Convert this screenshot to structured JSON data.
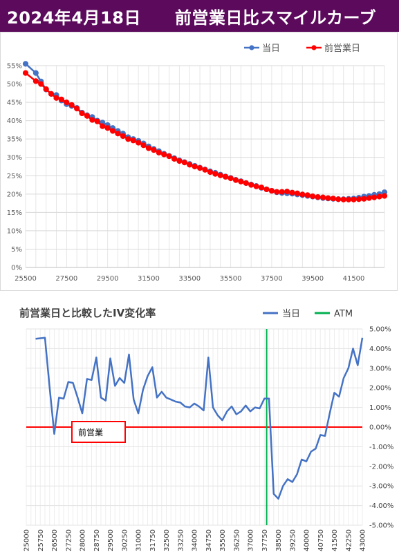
{
  "header": {
    "title": "2024年4月18日　　前営業日比スマイルカーブ"
  },
  "colors": {
    "header_bg": "#5c0a5c",
    "today": "#4472c4",
    "prev": "#ff0000",
    "atm": "#00b050",
    "iv_line": "#4472c4",
    "zero_line": "#ff0000"
  },
  "chart_data": [
    {
      "type": "line",
      "legend_position": "top-right",
      "grid": true,
      "xlim": [
        25500,
        43000
      ],
      "ylim": [
        0,
        55
      ],
      "x_ticks": [
        "25500",
        "27500",
        "29500",
        "31500",
        "33500",
        "35500",
        "37500",
        "39500",
        "41500"
      ],
      "y_ticks": [
        "0%",
        "5%",
        "10%",
        "15%",
        "20%",
        "25%",
        "30%",
        "35%",
        "40%",
        "45%",
        "50%",
        "55%"
      ],
      "series": [
        {
          "name": "当日",
          "x": [
            25500,
            26000,
            26250,
            26500,
            26750,
            27000,
            27250,
            27500,
            27750,
            28000,
            28250,
            28500,
            28750,
            29000,
            29250,
            29500,
            29750,
            30000,
            30250,
            30500,
            30750,
            31000,
            31250,
            31500,
            31750,
            32000,
            32250,
            32500,
            32750,
            33000,
            33250,
            33500,
            33750,
            34000,
            34250,
            34500,
            34750,
            35000,
            35250,
            35500,
            35750,
            36000,
            36250,
            36500,
            36750,
            37000,
            37250,
            37500,
            37750,
            38000,
            38250,
            38500,
            38750,
            39000,
            39250,
            39500,
            39750,
            40000,
            40250,
            40500,
            40750,
            41000,
            41250,
            41500,
            41750,
            42000,
            42250,
            42500,
            42750,
            43000
          ],
          "values": [
            55.5,
            53.0,
            50.7,
            48.5,
            47.3,
            47.0,
            45.5,
            44.5,
            44.0,
            43.5,
            42.2,
            41.5,
            41.0,
            40.0,
            39.5,
            38.8,
            38.0,
            37.2,
            36.5,
            35.5,
            35.0,
            34.5,
            33.8,
            33.0,
            32.3,
            31.7,
            31.0,
            30.4,
            29.8,
            29.2,
            28.7,
            28.2,
            27.7,
            27.2,
            26.7,
            26.2,
            25.8,
            25.3,
            24.8,
            24.4,
            23.9,
            23.5,
            23.0,
            22.6,
            22.2,
            21.7,
            21.3,
            20.9,
            20.5,
            20.3,
            20.2,
            20.1,
            19.9,
            19.7,
            19.5,
            19.3,
            19.1,
            18.9,
            18.8,
            18.7,
            18.6,
            18.6,
            18.7,
            18.8,
            19.0,
            19.3,
            19.5,
            19.8,
            20.0,
            20.5
          ]
        },
        {
          "name": "前営業日",
          "x": [
            25500,
            26000,
            26250,
            26500,
            26750,
            27000,
            27250,
            27500,
            27750,
            28000,
            28250,
            28500,
            28750,
            29000,
            29250,
            29500,
            29750,
            30000,
            30250,
            30500,
            30750,
            31000,
            31250,
            31500,
            31750,
            32000,
            32250,
            32500,
            32750,
            33000,
            33250,
            33500,
            33750,
            34000,
            34250,
            34500,
            34750,
            35000,
            35250,
            35500,
            35750,
            36000,
            36250,
            36500,
            36750,
            37000,
            37250,
            37500,
            37750,
            38000,
            38250,
            38500,
            38750,
            39000,
            39250,
            39500,
            39750,
            40000,
            40250,
            40500,
            40750,
            41000,
            41250,
            41500,
            41750,
            42000,
            42250,
            42500,
            42750,
            43000
          ],
          "values": [
            53.0,
            50.8,
            50.0,
            48.6,
            47.3,
            46.2,
            45.8,
            45.0,
            44.3,
            43.3,
            42.0,
            41.3,
            40.2,
            39.8,
            38.5,
            38.0,
            37.2,
            36.5,
            35.8,
            35.0,
            34.6,
            34.0,
            33.3,
            32.5,
            32.0,
            31.3,
            30.8,
            30.3,
            29.6,
            29.0,
            28.6,
            28.0,
            27.5,
            27.1,
            26.6,
            26.0,
            25.5,
            25.1,
            24.7,
            24.3,
            23.8,
            23.4,
            23.0,
            22.5,
            22.1,
            21.8,
            21.3,
            20.9,
            20.6,
            20.6,
            20.7,
            20.4,
            20.2,
            19.9,
            19.7,
            19.4,
            19.2,
            19.1,
            18.9,
            18.8,
            18.6,
            18.5,
            18.5,
            18.5,
            18.6,
            18.7,
            18.9,
            19.1,
            19.3,
            19.5
          ]
        }
      ]
    },
    {
      "type": "line",
      "title": "前営業日と比較したIV変化率",
      "legend_position": "top-right",
      "grid": true,
      "xlim": [
        25000,
        43000
      ],
      "ylim": [
        -5,
        5
      ],
      "x_ticks": [
        "25000",
        "25750",
        "26500",
        "27250",
        "28000",
        "28750",
        "29500",
        "30250",
        "31000",
        "31750",
        "32500",
        "33250",
        "34000",
        "34750",
        "35500",
        "36250",
        "37000",
        "37750",
        "38500",
        "39250",
        "40000",
        "40750",
        "41500",
        "42250",
        "43000"
      ],
      "y_ticks": [
        "5.00%",
        "4.00%",
        "3.00%",
        "2.00%",
        "1.00%",
        "0.00%",
        "-1.00%",
        "-2.00%",
        "-3.00%",
        "-4.00%",
        "-5.00%"
      ],
      "atm": 37875,
      "zero_label": "前営業",
      "series": [
        {
          "name": "当日",
          "x": [
            25500,
            26000,
            26250,
            26500,
            26750,
            27000,
            27250,
            27500,
            27750,
            28000,
            28250,
            28500,
            28750,
            29000,
            29250,
            29500,
            29750,
            30000,
            30250,
            30500,
            30750,
            31000,
            31250,
            31500,
            31750,
            32000,
            32250,
            32500,
            32750,
            33000,
            33250,
            33500,
            33750,
            34000,
            34250,
            34500,
            34750,
            35000,
            35250,
            35500,
            35750,
            36000,
            36250,
            36500,
            36750,
            37000,
            37250,
            37500,
            37750,
            38000,
            38250,
            38500,
            38750,
            39000,
            39250,
            39500,
            39750,
            40000,
            40250,
            40500,
            40750,
            41000,
            41250,
            41500,
            41750,
            42000,
            42250,
            42500,
            42750,
            43000
          ],
          "values": [
            4.5,
            4.55,
            2.0,
            -0.35,
            1.5,
            1.45,
            2.3,
            2.25,
            1.5,
            0.7,
            2.45,
            2.4,
            3.55,
            1.5,
            1.35,
            3.5,
            2.1,
            2.5,
            2.25,
            3.7,
            1.4,
            0.7,
            1.9,
            2.6,
            3.05,
            1.5,
            1.8,
            1.5,
            1.4,
            1.3,
            1.25,
            1.05,
            1.0,
            1.2,
            1.05,
            0.85,
            3.55,
            1.0,
            0.6,
            0.35,
            0.8,
            1.05,
            0.65,
            0.8,
            1.1,
            0.8,
            1.0,
            0.95,
            1.45,
            1.45,
            -3.4,
            -3.65,
            -3.0,
            -2.65,
            -2.8,
            -2.4,
            -1.65,
            -1.75,
            -1.25,
            -1.1,
            -0.4,
            -0.45,
            0.7,
            1.75,
            1.55,
            2.5,
            3.0,
            4.0,
            3.15,
            4.55
          ]
        }
      ]
    }
  ]
}
